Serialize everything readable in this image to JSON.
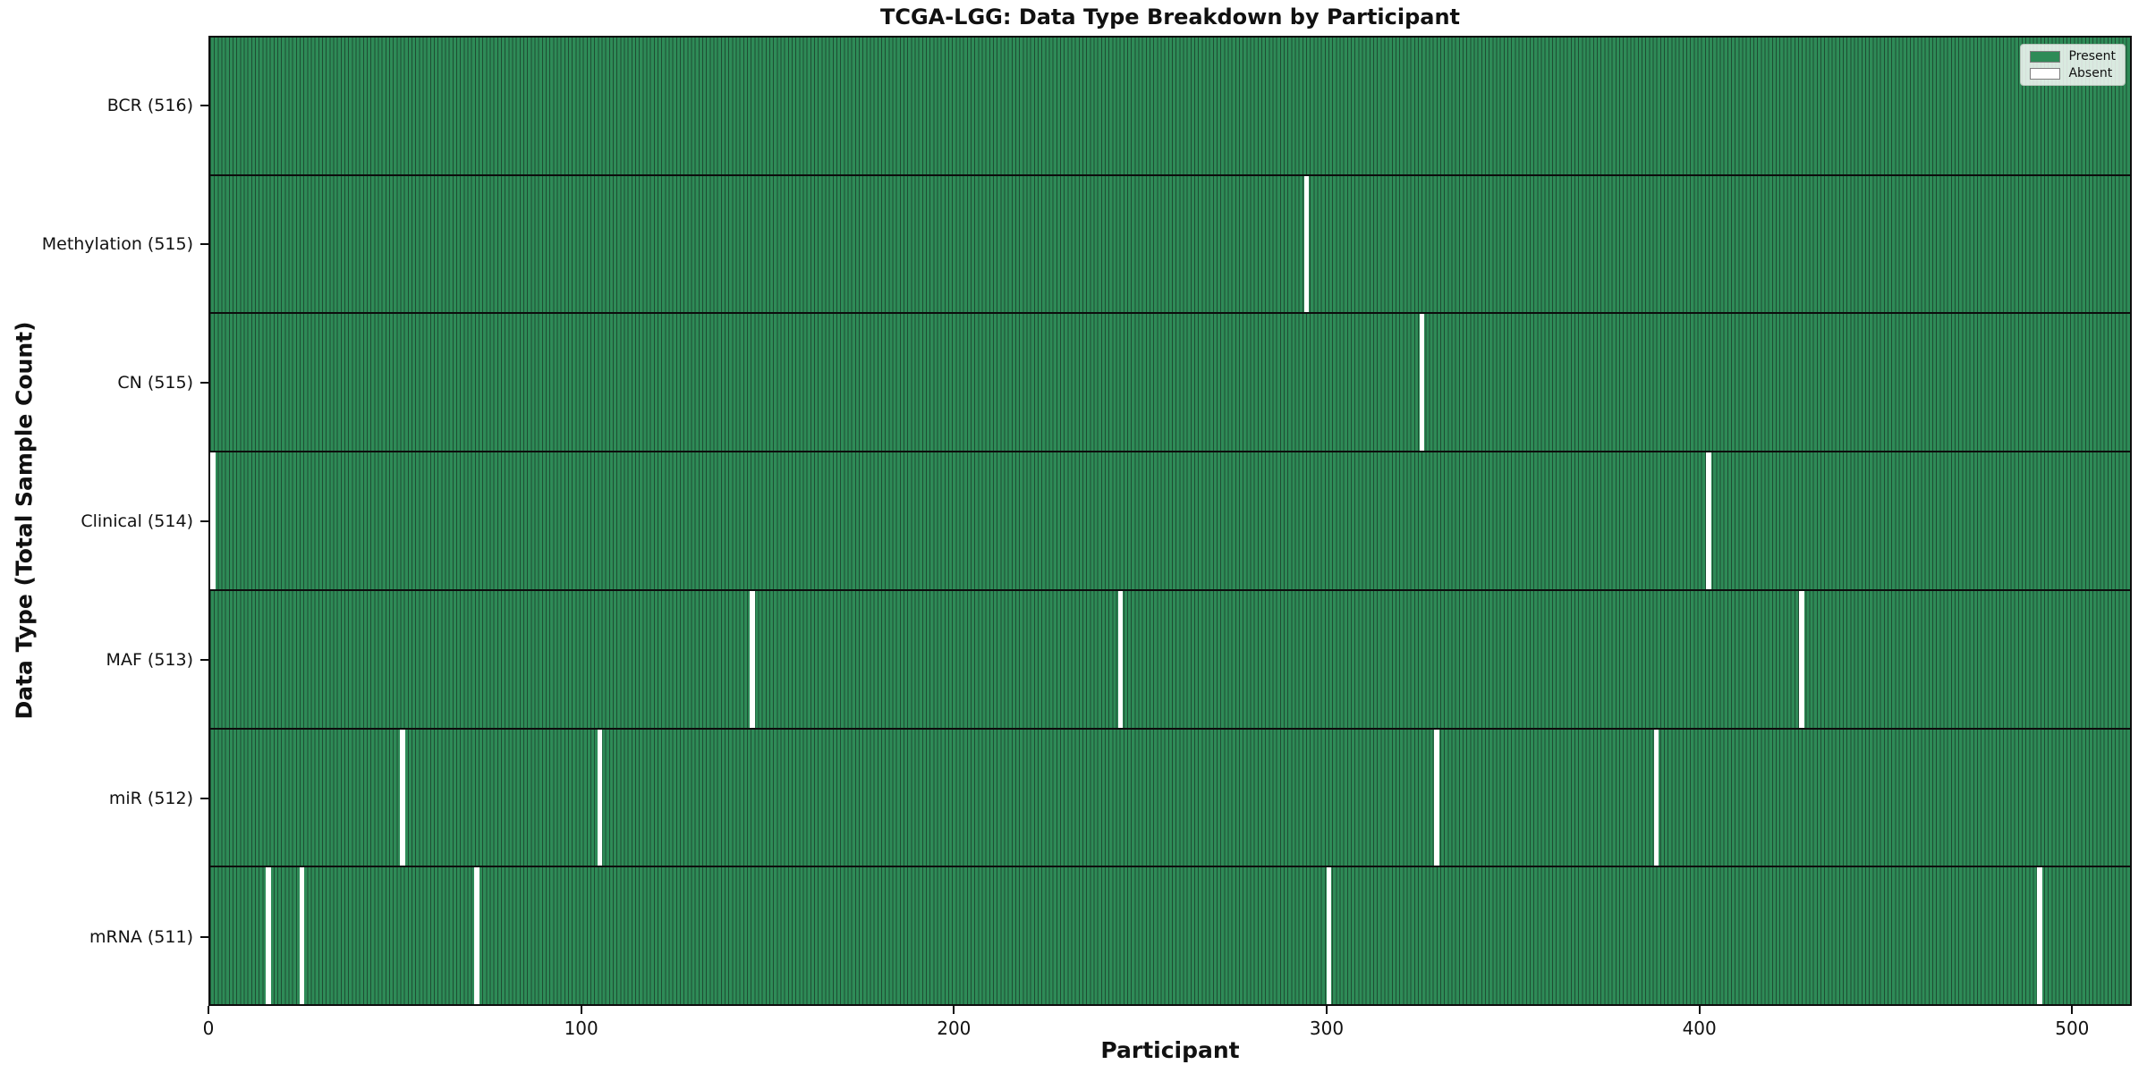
{
  "chart_data": {
    "type": "heatmap",
    "title": "TCGA-LGG: Data Type Breakdown by Participant",
    "xlabel": "Participant",
    "ylabel": "Data Type (Total Sample Count)",
    "n_participants": 516,
    "xlim": [
      0,
      516
    ],
    "x_ticks": [
      0,
      100,
      200,
      300,
      400,
      500
    ],
    "grid": false,
    "legend_position": "upper right",
    "legend_items": [
      {
        "label": "Present",
        "color": "#2e8b57"
      },
      {
        "label": "Absent",
        "color": "#ffffff"
      }
    ],
    "colors": {
      "present": "#2e8b57",
      "absent": "#ffffff",
      "bar_edge": "#1e4d33",
      "row_separator": "#0d0d0d",
      "axis": "#0d0d0d"
    },
    "rows": [
      {
        "label": "BCR (516)",
        "data_type": "BCR",
        "total": 516,
        "absent_participants": []
      },
      {
        "label": "Methylation (515)",
        "data_type": "Methylation",
        "total": 515,
        "absent_participants": [
          294
        ]
      },
      {
        "label": "CN (515)",
        "data_type": "CN",
        "total": 515,
        "absent_participants": [
          325
        ]
      },
      {
        "label": "Clinical (514)",
        "data_type": "Clinical",
        "total": 514,
        "absent_participants": [
          0,
          402
        ]
      },
      {
        "label": "MAF (513)",
        "data_type": "MAF",
        "total": 513,
        "absent_participants": [
          145,
          244,
          427
        ]
      },
      {
        "label": "miR (512)",
        "data_type": "miR",
        "total": 512,
        "absent_participants": [
          51,
          104,
          329,
          388
        ]
      },
      {
        "label": "mRNA (511)",
        "data_type": "mRNA",
        "total": 511,
        "absent_participants": [
          15,
          24,
          71,
          300,
          491
        ]
      }
    ]
  }
}
